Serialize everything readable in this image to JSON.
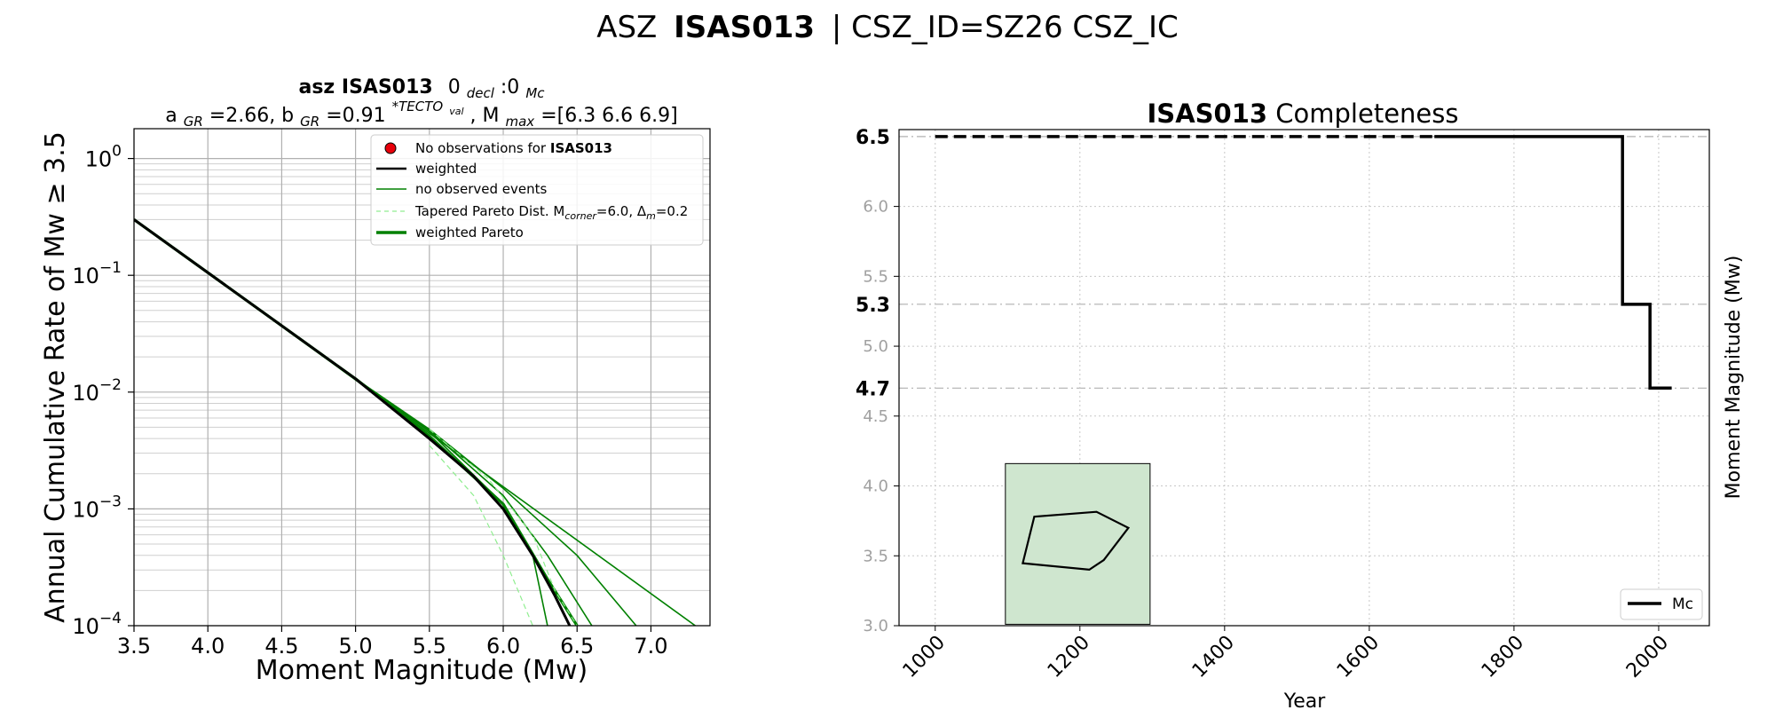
{
  "suptitle": {
    "prefix": "ASZ",
    "zone": "ISAS013",
    "suffix": "| CSZ_ID=SZ26 CSZ_IC"
  },
  "chart_data": [
    {
      "type": "line",
      "title_line1": {
        "a": "asz ",
        "b": "ISAS013",
        "c": "0",
        "c_sub": "decl",
        "d": ":0",
        "d_sub": "Mc"
      },
      "title_line2": {
        "a": "a",
        "a_sub": "GR",
        "b": "=2.66,  b",
        "b_sub": "GR",
        "c": "=0.91",
        "c_sup": "*TECTO",
        "c_supsub": "val",
        "d": ", M",
        "d_sub": "max",
        "e": "=[6.3 6.6 6.9]"
      },
      "xlabel": "Moment Magnitude (Mw)",
      "ylabel": "Annual Cumulative Rate of Mw  ≥  3.5",
      "xlim": [
        3.5,
        7.4
      ],
      "ylim": [
        0.0001,
        1.8
      ],
      "yscale": "log",
      "grid": true,
      "xticks": [
        "3.5",
        "4.0",
        "4.5",
        "5.0",
        "5.5",
        "6.0",
        "6.5",
        "7.0"
      ],
      "yticks": [
        {
          "base": "10",
          "exp": "0",
          "value": 1
        },
        {
          "base": "10",
          "exp": "−1",
          "value": 0.1
        },
        {
          "base": "10",
          "exp": "−2",
          "value": 0.01
        },
        {
          "base": "10",
          "exp": "−3",
          "value": 0.001
        },
        {
          "base": "10",
          "exp": "−4",
          "value": 0.0001
        }
      ],
      "legend_position": "top-right",
      "legend": [
        {
          "text": "No observations for ",
          "bold": "ISAS013",
          "style": "marker",
          "color": "#e8000b"
        },
        {
          "text": "weighted",
          "style": "solid",
          "color": "#000000"
        },
        {
          "text": "no observed events",
          "style": "solid",
          "color": "#008000"
        },
        {
          "text": "Tapered Pareto Dist. M",
          "sub1": "corner",
          "mid": "=6.0, Δ",
          "sub2": "m",
          "end": "=0.2",
          "style": "dashed",
          "color": "#90ee90"
        },
        {
          "text": "weighted Pareto",
          "style": "thick",
          "color": "#008000"
        }
      ],
      "a_gr": 2.66,
      "b_gr": 0.91,
      "mmax": [
        6.3,
        6.6,
        6.9
      ],
      "m_corner": 6.0,
      "series": [
        {
          "style": "gr_line",
          "color": "#008000",
          "x": [
            3.5,
            7.3
          ],
          "y": [
            0.3,
            0.0001
          ]
        },
        {
          "style": "trunc",
          "color": "#008000",
          "width": 1.6,
          "x": [
            3.5,
            5.0,
            5.5,
            6.0,
            6.2,
            6.3
          ],
          "y": [
            0.3,
            0.013,
            0.0046,
            0.0011,
            0.0004,
            0.0001
          ]
        },
        {
          "style": "trunc",
          "color": "#008000",
          "width": 1.6,
          "x": [
            3.5,
            5.0,
            5.5,
            6.0,
            6.3,
            6.6
          ],
          "y": [
            0.3,
            0.013,
            0.0047,
            0.0013,
            0.0004,
            0.0001
          ]
        },
        {
          "style": "trunc",
          "color": "#008000",
          "width": 1.6,
          "x": [
            3.5,
            5.0,
            5.5,
            6.0,
            6.5,
            6.9
          ],
          "y": [
            0.3,
            0.013,
            0.0048,
            0.0015,
            0.0004,
            0.0001
          ]
        },
        {
          "style": "weighted_pareto",
          "color": "#008000",
          "width": 3.2,
          "x": [
            3.5,
            5.0,
            5.5,
            6.0,
            6.3,
            6.5
          ],
          "y": [
            0.3,
            0.013,
            0.0042,
            0.0011,
            0.00025,
            0.0001
          ]
        },
        {
          "style": "weighted",
          "color": "#000000",
          "width": 3.0,
          "x": [
            3.5,
            5.0,
            5.5,
            5.8,
            6.0,
            6.2,
            6.35,
            6.45
          ],
          "y": [
            0.3,
            0.013,
            0.004,
            0.0019,
            0.001,
            0.0004,
            0.00018,
            0.0001
          ]
        },
        {
          "style": "tapered",
          "color": "#90ee90",
          "x": [
            5.5,
            5.8,
            6.0,
            6.1,
            6.2
          ],
          "y": [
            0.0035,
            0.0013,
            0.0004,
            0.0002,
            0.0001
          ]
        },
        {
          "style": "tapered",
          "color": "#90ee90",
          "x": [
            5.5,
            5.9,
            6.2,
            6.35,
            6.5
          ],
          "y": [
            0.0048,
            0.0018,
            0.0006,
            0.0002,
            0.0001
          ]
        }
      ]
    },
    {
      "type": "line",
      "title": {
        "bold": "ISAS013",
        "rest": " Completeness"
      },
      "xlabel": "Year",
      "ylabel": "Moment Magnitude (Mw)",
      "xlim": [
        950,
        2070
      ],
      "ylim": [
        3.0,
        6.55
      ],
      "grid": true,
      "xticks": [
        "1000",
        "1200",
        "1400",
        "1600",
        "1800",
        "2000"
      ],
      "yticks_minor": [
        "3.0",
        "3.5",
        "4.0",
        "4.5",
        "5.0",
        "5.5",
        "6.0"
      ],
      "yticks_major": [
        "4.7",
        "5.3",
        "6.5"
      ],
      "legend_position": "lower-right",
      "legend": [
        {
          "text": "Mc",
          "color": "#000000"
        }
      ],
      "completeness": {
        "dashed": {
          "x": [
            1000,
            1690
          ],
          "y": [
            6.5,
            6.5
          ]
        },
        "solid": {
          "x": [
            1690,
            1950,
            1950,
            1988,
            1988,
            2018
          ],
          "y": [
            6.5,
            6.5,
            5.3,
            5.3,
            4.7,
            4.7
          ]
        }
      },
      "reference_lines": [
        6.5,
        5.3,
        4.7
      ],
      "inset": {
        "color": "#cfe6cf",
        "polygon_lon": [
          0,
          1,
          2,
          3,
          4
        ],
        "polygon": [
          [
            0.12,
            0.62
          ],
          [
            0.2,
            0.33
          ],
          [
            0.63,
            0.3
          ],
          [
            0.85,
            0.4
          ],
          [
            0.68,
            0.6
          ],
          [
            0.58,
            0.66
          ]
        ]
      }
    }
  ]
}
